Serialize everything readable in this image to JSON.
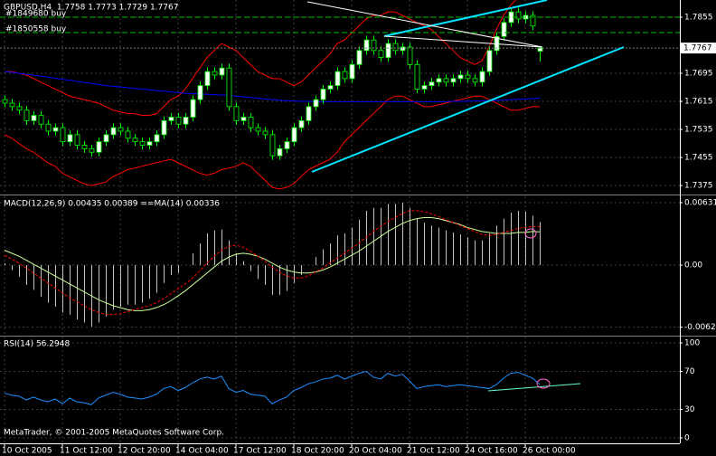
{
  "chart_data": [
    {
      "type": "candlestick",
      "title": "GBPUSD,H4  1.7758 1.7773 1.7729 1.7767",
      "up_color": "#ffffff",
      "down_color": "#000000",
      "wick_color": "#00ff00",
      "grid": true,
      "ylim": [
        1.7352,
        1.7904
      ],
      "yticks": [
        1.7855,
        1.7695,
        1.7615,
        1.7535,
        1.7455,
        1.7375
      ],
      "current_price": 1.7767,
      "orders": [
        {
          "label": "#1849680 buy",
          "price": 1.7855,
          "color": "#00c000"
        },
        {
          "label": "#1850558 buy",
          "price": 1.7811,
          "color": "#00c000"
        }
      ],
      "categories": [
        "10 Oct 2005",
        null,
        null,
        null,
        null,
        null,
        null,
        null,
        "11 Oct 12:00",
        null,
        null,
        null,
        null,
        null,
        null,
        null,
        "12 Oct 20:00",
        null,
        null,
        null,
        null,
        null,
        null,
        null,
        "14 Oct 04:00",
        null,
        null,
        null,
        null,
        null,
        null,
        null,
        "17 Oct 12:00",
        null,
        null,
        null,
        null,
        null,
        null,
        null,
        "18 Oct 20:00",
        null,
        null,
        null,
        null,
        null,
        null,
        null,
        "20 Oct 04:00",
        null,
        null,
        null,
        null,
        null,
        null,
        null,
        "21 Oct 12:00",
        null,
        null,
        null,
        null,
        null,
        null,
        null,
        "24 Oct 16:00",
        null,
        null,
        null,
        null,
        null,
        null,
        null,
        "26 Oct 00:00",
        null,
        null
      ],
      "candles": [
        [
          1.762,
          1.7632,
          1.7598,
          1.761
        ],
        [
          1.761,
          1.7622,
          1.7588,
          1.76
        ],
        [
          1.76,
          1.7612,
          1.7578,
          1.759
        ],
        [
          1.759,
          1.7602,
          1.7548,
          1.756
        ],
        [
          1.756,
          1.7587,
          1.7548,
          1.7575
        ],
        [
          1.7575,
          1.7587,
          1.7538,
          1.755
        ],
        [
          1.755,
          1.7562,
          1.7518,
          1.753
        ],
        [
          1.753,
          1.7552,
          1.7518,
          1.754
        ],
        [
          1.754,
          1.7552,
          1.7488,
          1.75
        ],
        [
          1.75,
          1.7532,
          1.7488,
          1.752
        ],
        [
          1.752,
          1.7532,
          1.7478,
          1.749
        ],
        [
          1.749,
          1.7502,
          1.7468,
          1.748
        ],
        [
          1.748,
          1.7492,
          1.7458,
          1.747
        ],
        [
          1.747,
          1.7512,
          1.7458,
          1.75
        ],
        [
          1.75,
          1.7532,
          1.7488,
          1.752
        ],
        [
          1.752,
          1.7552,
          1.7508,
          1.754
        ],
        [
          1.754,
          1.7552,
          1.7518,
          1.753
        ],
        [
          1.753,
          1.7542,
          1.7498,
          1.751
        ],
        [
          1.751,
          1.7522,
          1.7488,
          1.75
        ],
        [
          1.75,
          1.7512,
          1.7478,
          1.749
        ],
        [
          1.749,
          1.7512,
          1.7478,
          1.75
        ],
        [
          1.75,
          1.7532,
          1.7488,
          1.752
        ],
        [
          1.752,
          1.7572,
          1.7508,
          1.756
        ],
        [
          1.756,
          1.7582,
          1.7548,
          1.757
        ],
        [
          1.757,
          1.7582,
          1.7538,
          1.755
        ],
        [
          1.755,
          1.7582,
          1.7538,
          1.757
        ],
        [
          1.757,
          1.7632,
          1.7558,
          1.762
        ],
        [
          1.762,
          1.7672,
          1.7608,
          1.766
        ],
        [
          1.766,
          1.7712,
          1.7648,
          1.77
        ],
        [
          1.77,
          1.7712,
          1.7678,
          1.769
        ],
        [
          1.769,
          1.7722,
          1.7678,
          1.771
        ],
        [
          1.771,
          1.7722,
          1.7588,
          1.76
        ],
        [
          1.76,
          1.7612,
          1.7548,
          1.756
        ],
        [
          1.756,
          1.7582,
          1.7548,
          1.757
        ],
        [
          1.757,
          1.7582,
          1.7528,
          1.754
        ],
        [
          1.754,
          1.7552,
          1.7518,
          1.753
        ],
        [
          1.753,
          1.7542,
          1.7508,
          1.752
        ],
        [
          1.752,
          1.7532,
          1.7448,
          1.746
        ],
        [
          1.746,
          1.7492,
          1.7448,
          1.748
        ],
        [
          1.748,
          1.7512,
          1.7468,
          1.75
        ],
        [
          1.75,
          1.7552,
          1.7488,
          1.754
        ],
        [
          1.754,
          1.7572,
          1.7528,
          1.756
        ],
        [
          1.756,
          1.7612,
          1.7548,
          1.76
        ],
        [
          1.76,
          1.7632,
          1.7588,
          1.762
        ],
        [
          1.762,
          1.7662,
          1.7608,
          1.765
        ],
        [
          1.765,
          1.7672,
          1.7638,
          1.766
        ],
        [
          1.766,
          1.7712,
          1.7648,
          1.77
        ],
        [
          1.77,
          1.7712,
          1.7668,
          1.768
        ],
        [
          1.768,
          1.7732,
          1.7668,
          1.772
        ],
        [
          1.772,
          1.7772,
          1.7708,
          1.776
        ],
        [
          1.776,
          1.7802,
          1.7748,
          1.779
        ],
        [
          1.779,
          1.7802,
          1.7748,
          1.776
        ],
        [
          1.776,
          1.7772,
          1.7728,
          1.774
        ],
        [
          1.774,
          1.7792,
          1.7728,
          1.778
        ],
        [
          1.778,
          1.7792,
          1.7748,
          1.776
        ],
        [
          1.776,
          1.7782,
          1.7748,
          1.777
        ],
        [
          1.777,
          1.7782,
          1.7708,
          1.772
        ],
        [
          1.772,
          1.7732,
          1.7638,
          1.765
        ],
        [
          1.765,
          1.7672,
          1.7638,
          1.766
        ],
        [
          1.766,
          1.7682,
          1.7648,
          1.767
        ],
        [
          1.767,
          1.7692,
          1.7658,
          1.768
        ],
        [
          1.768,
          1.7692,
          1.7658,
          1.767
        ],
        [
          1.767,
          1.7692,
          1.7658,
          1.768
        ],
        [
          1.768,
          1.7702,
          1.7668,
          1.769
        ],
        [
          1.769,
          1.7702,
          1.7668,
          1.768
        ],
        [
          1.768,
          1.7692,
          1.7658,
          1.767
        ],
        [
          1.767,
          1.7712,
          1.7658,
          1.77
        ],
        [
          1.77,
          1.7772,
          1.7688,
          1.776
        ],
        [
          1.776,
          1.7812,
          1.7748,
          1.78
        ],
        [
          1.78,
          1.7852,
          1.7788,
          1.784
        ],
        [
          1.784,
          1.7882,
          1.7828,
          1.787
        ],
        [
          1.787,
          1.7882,
          1.7838,
          1.785
        ],
        [
          1.785,
          1.7872,
          1.7838,
          1.786
        ],
        [
          1.786,
          1.7872,
          1.7818,
          1.783
        ],
        [
          1.7758,
          1.7773,
          1.7729,
          1.7767
        ]
      ],
      "overlays": [
        {
          "color": "#ff0000",
          "values": [
            1.77,
            1.77,
            1.7695,
            1.769,
            1.768,
            1.767,
            1.766,
            1.765,
            1.764,
            1.763,
            1.7625,
            1.762,
            1.7615,
            1.761,
            1.76,
            1.759,
            1.7585,
            1.758,
            1.758,
            1.7575,
            1.7575,
            1.758,
            1.76,
            1.762,
            1.763,
            1.765,
            1.768,
            1.771,
            1.774,
            1.776,
            1.778,
            1.777,
            1.776,
            1.774,
            1.772,
            1.77,
            1.769,
            1.768,
            1.768,
            1.767,
            1.766,
            1.767,
            1.769,
            1.771,
            1.773,
            1.775,
            1.778,
            1.779,
            1.781,
            1.783,
            1.785,
            1.786,
            1.786,
            1.787,
            1.787,
            1.786,
            1.785,
            1.784,
            1.783,
            1.782,
            1.78,
            1.778,
            1.776,
            1.774,
            1.773,
            1.772,
            1.773,
            1.777,
            1.782,
            1.786,
            1.789,
            1.791,
            1.792,
            1.7925,
            1.7925
          ]
        },
        {
          "color": "#ff0000",
          "values": [
            1.752,
            1.751,
            1.7495,
            1.748,
            1.747,
            1.7455,
            1.744,
            1.743,
            1.741,
            1.74,
            1.739,
            1.738,
            1.7375,
            1.738,
            1.7385,
            1.74,
            1.741,
            1.742,
            1.7425,
            1.743,
            1.7435,
            1.744,
            1.7445,
            1.745,
            1.744,
            1.743,
            1.742,
            1.741,
            1.7405,
            1.741,
            1.742,
            1.7425,
            1.743,
            1.744,
            1.743,
            1.741,
            1.739,
            1.737,
            1.7365,
            1.737,
            1.738,
            1.74,
            1.742,
            1.743,
            1.744,
            1.745,
            1.747,
            1.75,
            1.752,
            1.754,
            1.756,
            1.758,
            1.76,
            1.762,
            1.763,
            1.763,
            1.762,
            1.761,
            1.76,
            1.76,
            1.7605,
            1.761,
            1.7615,
            1.762,
            1.7625,
            1.763,
            1.763,
            1.762,
            1.761,
            1.76,
            1.759,
            1.759,
            1.7595,
            1.76,
            1.76
          ]
        },
        {
          "color": "#0000ff",
          "values": [
            1.77,
            1.7698,
            1.7695,
            1.7692,
            1.769,
            1.7687,
            1.7684,
            1.7681,
            1.7678,
            1.7675,
            1.7672,
            1.7669,
            1.7666,
            1.7663,
            1.766,
            1.7658,
            1.7656,
            1.7654,
            1.7652,
            1.765,
            1.7648,
            1.7646,
            1.7644,
            1.7642,
            1.764,
            1.7638,
            1.7637,
            1.7636,
            1.7635,
            1.7634,
            1.7633,
            1.7632,
            1.763,
            1.7628,
            1.7626,
            1.7624,
            1.7622,
            1.762,
            1.7618,
            1.7617,
            1.7616,
            1.7615,
            1.7615,
            1.7614,
            1.7614,
            1.7614,
            1.7614,
            1.7614,
            1.7614,
            1.7614,
            1.7614,
            1.7614,
            1.7614,
            1.7614,
            1.7614,
            1.7614,
            1.7614,
            1.7614,
            1.7614,
            1.7614,
            1.7614,
            1.7614,
            1.7615,
            1.7615,
            1.7615,
            1.7616,
            1.7616,
            1.7617,
            1.7618,
            1.7619,
            1.762,
            1.7621,
            1.7622,
            1.7623,
            1.7624
          ]
        }
      ]
    },
    {
      "type": "macd",
      "title": "MACD(12,26,9) 0.00435 0.00389 ==MA(14) 0.00336",
      "grid": true,
      "ylim": [
        -0.00704,
        0.00695
      ],
      "yticks": [
        0.00631,
        {
          "value": 0,
          "label": "0.00"
        },
        -0.00627
      ],
      "histogram": {
        "color": "#c0c0c0",
        "values": [
          0.0002,
          -0.0005,
          -0.0012,
          -0.002,
          -0.0025,
          -0.0032,
          -0.0038,
          -0.0042,
          -0.0048,
          -0.005,
          -0.0055,
          -0.0058,
          -0.0062,
          -0.0058,
          -0.0052,
          -0.0045,
          -0.0042,
          -0.004,
          -0.004,
          -0.0038,
          -0.0034,
          -0.0028,
          -0.0018,
          -0.001,
          -0.0008,
          0.0,
          0.0012,
          0.0022,
          0.0032,
          0.0035,
          0.0036,
          0.0025,
          0.0012,
          0.0004,
          -0.0006,
          -0.0014,
          -0.002,
          -0.003,
          -0.003,
          -0.0026,
          -0.0018,
          -0.001,
          0.0,
          0.0008,
          0.0016,
          0.0022,
          0.003,
          0.0032,
          0.0038,
          0.0046,
          0.0055,
          0.0058,
          0.0058,
          0.0062,
          0.0062,
          0.0063,
          0.0058,
          0.0047,
          0.0043,
          0.004,
          0.0038,
          0.0035,
          0.0033,
          0.0031,
          0.0028,
          0.0025,
          0.0025,
          0.0032,
          0.004,
          0.0047,
          0.0053,
          0.0055,
          0.0054,
          0.005,
          0.00435
        ]
      },
      "signal": {
        "color": "#ff0000",
        "values": [
          0.001,
          0.0006,
          0.0002,
          -0.0003,
          -0.0008,
          -0.0013,
          -0.0018,
          -0.0023,
          -0.0028,
          -0.0033,
          -0.0037,
          -0.0041,
          -0.0045,
          -0.0048,
          -0.005,
          -0.005,
          -0.0049,
          -0.0047,
          -0.0045,
          -0.0043,
          -0.0041,
          -0.0038,
          -0.0034,
          -0.0029,
          -0.0024,
          -0.0019,
          -0.0013,
          -0.0006,
          0.0002,
          0.0009,
          0.0015,
          0.0019,
          0.002,
          0.0018,
          0.0014,
          0.0009,
          0.0004,
          -0.0002,
          -0.0007,
          -0.0011,
          -0.0013,
          -0.0013,
          -0.0011,
          -0.0007,
          -0.0003,
          0.0002,
          0.0007,
          0.0012,
          0.0017,
          0.0022,
          0.0028,
          0.0034,
          0.0039,
          0.0044,
          0.0048,
          0.0052,
          0.0055,
          0.0055,
          0.0054,
          0.0052,
          0.0049,
          0.0046,
          0.0043,
          0.004,
          0.0037,
          0.0034,
          0.0031,
          0.003,
          0.0031,
          0.0033,
          0.0035,
          0.0037,
          0.0038,
          0.0039,
          0.00389
        ]
      },
      "ma": {
        "color": "#ccff99",
        "values": [
          0.0015,
          0.0012,
          0.0009,
          0.0005,
          0.0001,
          -0.0003,
          -0.0007,
          -0.0011,
          -0.0015,
          -0.0019,
          -0.0023,
          -0.0027,
          -0.0031,
          -0.0035,
          -0.0038,
          -0.0041,
          -0.0043,
          -0.0045,
          -0.0046,
          -0.0046,
          -0.0045,
          -0.0043,
          -0.004,
          -0.0036,
          -0.0031,
          -0.0026,
          -0.002,
          -0.0014,
          -0.0008,
          -0.0002,
          0.0004,
          0.0008,
          0.0011,
          0.0012,
          0.0011,
          0.0009,
          0.0006,
          0.0002,
          -0.0002,
          -0.0005,
          -0.0007,
          -0.0008,
          -0.0008,
          -0.0007,
          -0.0005,
          -0.0002,
          0.0002,
          0.0006,
          0.001,
          0.0014,
          0.0019,
          0.0024,
          0.0029,
          0.0034,
          0.0038,
          0.0042,
          0.0045,
          0.0047,
          0.0048,
          0.0048,
          0.0047,
          0.0045,
          0.0043,
          0.0041,
          0.0038,
          0.0036,
          0.0034,
          0.0033,
          0.0032,
          0.0032,
          0.0032,
          0.0033,
          0.0033,
          0.0034,
          0.00336
        ]
      }
    },
    {
      "type": "line",
      "title": "RSI(14) 56.2948",
      "grid": true,
      "color": "#1e90ff",
      "ylim": [
        -5.7,
        106.7
      ],
      "yticks": [
        100,
        70,
        30,
        0
      ],
      "values": [
        47,
        45,
        44,
        40,
        43,
        40,
        38,
        41,
        36,
        42,
        38,
        37,
        35,
        42,
        45,
        48,
        46,
        43,
        42,
        41,
        43,
        46,
        52,
        54,
        50,
        53,
        58,
        62,
        64,
        62,
        65,
        52,
        48,
        50,
        46,
        45,
        44,
        36,
        40,
        43,
        50,
        53,
        57,
        59,
        62,
        63,
        66,
        62,
        65,
        68,
        70,
        64,
        62,
        68,
        65,
        67,
        60,
        52,
        54,
        55,
        56,
        54,
        55,
        56,
        55,
        54,
        53,
        52,
        56,
        63,
        68,
        69,
        66,
        63,
        56.2948
      ],
      "footer": "MetaTrader, © 2001-2005 MetaQuotes Software Corp."
    }
  ]
}
